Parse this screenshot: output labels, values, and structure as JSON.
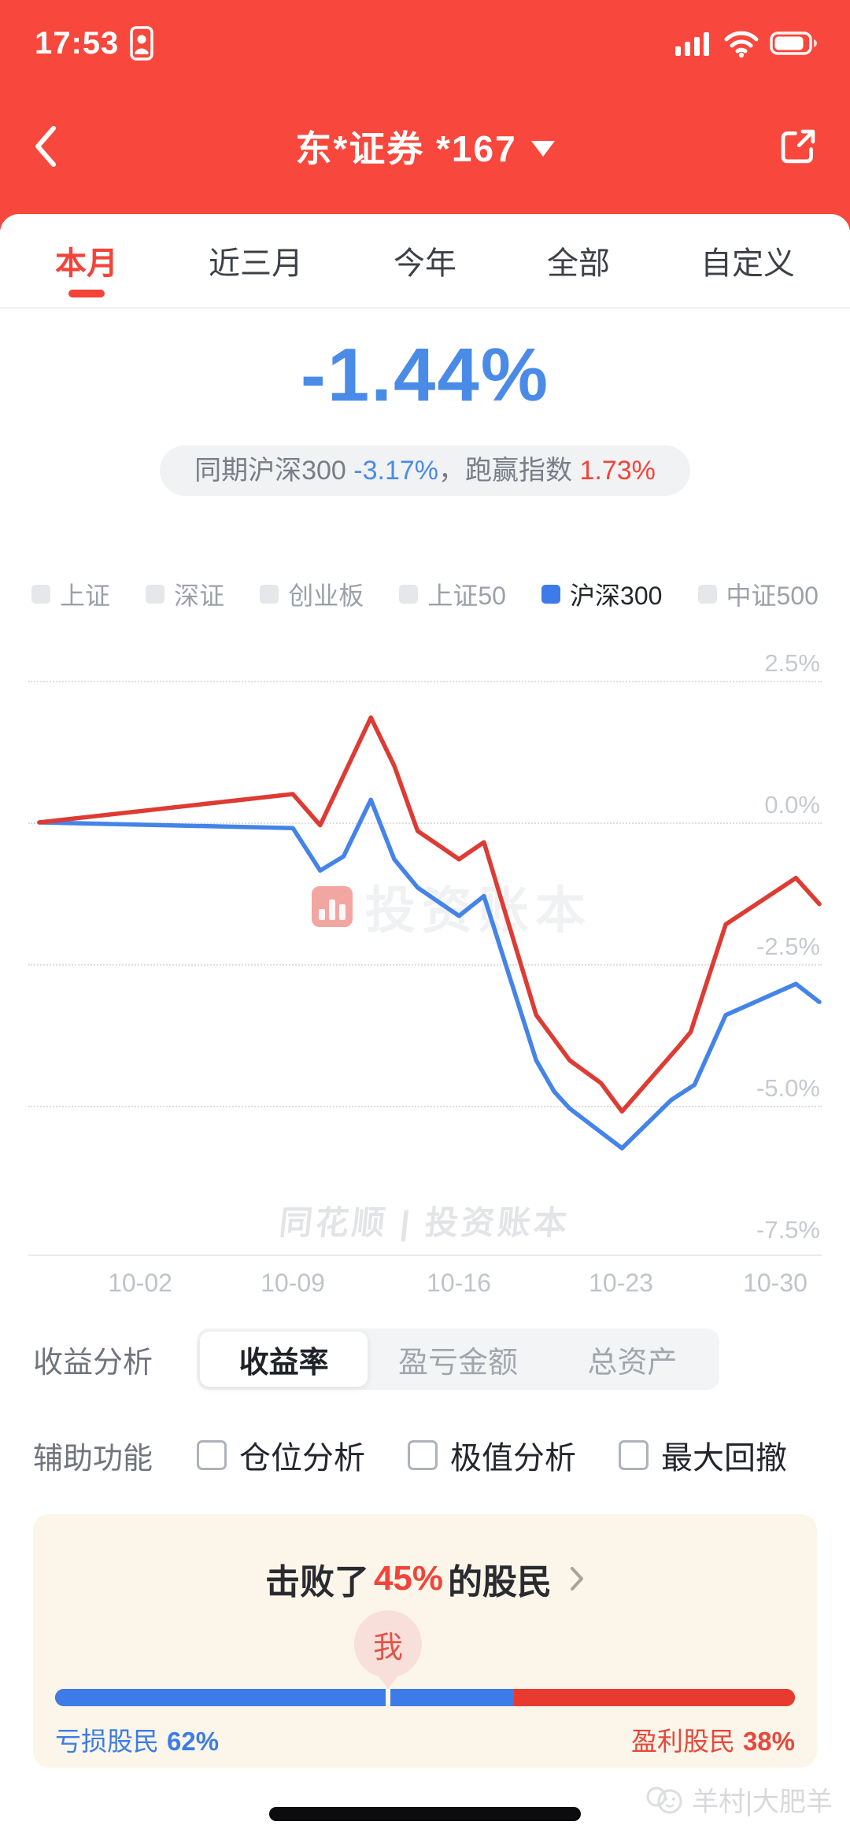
{
  "status_bar": {
    "time": "17:53"
  },
  "header": {
    "title": "东*证券 *167"
  },
  "tabs": [
    {
      "label": "本月",
      "active": true
    },
    {
      "label": "近三月",
      "active": false
    },
    {
      "label": "今年",
      "active": false
    },
    {
      "label": "全部",
      "active": false
    },
    {
      "label": "自定义",
      "active": false
    }
  ],
  "summary": {
    "period_return": "-1.44%",
    "benchmark_prefix": "同期沪深300 ",
    "benchmark_return": "-3.17%",
    "middle_text": "，跑赢指数 ",
    "outperformance": "1.73%"
  },
  "legend": [
    {
      "label": "上证",
      "active": false
    },
    {
      "label": "深证",
      "active": false
    },
    {
      "label": "创业板",
      "active": false
    },
    {
      "label": "上证50",
      "active": false
    },
    {
      "label": "沪深300",
      "active": true
    },
    {
      "label": "中证500",
      "active": false
    }
  ],
  "chart_data": {
    "type": "line",
    "title": "",
    "x_axis_labels": [
      "10-02",
      "10-09",
      "10-16",
      "10-23",
      "10-30"
    ],
    "x_label_positions_pct": [
      12.9,
      32.5,
      53.8,
      74.6,
      94.3
    ],
    "y_tick_labels": [
      "2.5%",
      "0.0%",
      "-2.5%",
      "-5.0%",
      "-7.5%"
    ],
    "y_tick_values": [
      2.5,
      0,
      -2.5,
      -5.0,
      -7.5
    ],
    "ylim": [
      -7.6,
      3.1
    ],
    "grid": "horizontal-dotted",
    "legend_position": "top",
    "x_unit": "percent_of_chart_width",
    "y_unit": "percent_return",
    "series": [
      {
        "name": "收益率",
        "color": "#DD3B33",
        "final_value": "-1.44%",
        "points": [
          [
            0,
            0
          ],
          [
            32.5,
            0.5
          ],
          [
            36,
            -0.05
          ],
          [
            42.5,
            1.85
          ],
          [
            45.5,
            1.0
          ],
          [
            48.5,
            -0.15
          ],
          [
            53.8,
            -0.65
          ],
          [
            57,
            -0.35
          ],
          [
            63.7,
            -3.4
          ],
          [
            68,
            -4.2
          ],
          [
            72,
            -4.6
          ],
          [
            74.7,
            -5.1
          ],
          [
            82,
            -3.95
          ],
          [
            83.5,
            -3.7
          ],
          [
            88,
            -1.8
          ],
          [
            97,
            -0.98
          ],
          [
            100,
            -1.44
          ]
        ]
      },
      {
        "name": "沪深300",
        "color": "#4484E8",
        "final_value": "-3.17%",
        "points": [
          [
            0,
            0
          ],
          [
            32.5,
            -0.1
          ],
          [
            36,
            -0.85
          ],
          [
            39,
            -0.6
          ],
          [
            42.5,
            0.4
          ],
          [
            45.5,
            -0.65
          ],
          [
            48.5,
            -1.15
          ],
          [
            53.8,
            -1.65
          ],
          [
            57,
            -1.3
          ],
          [
            63.7,
            -4.2
          ],
          [
            66,
            -4.75
          ],
          [
            68,
            -5.05
          ],
          [
            74.7,
            -5.75
          ],
          [
            81,
            -4.9
          ],
          [
            84,
            -4.63
          ],
          [
            88,
            -3.4
          ],
          [
            97,
            -2.85
          ],
          [
            100,
            -3.17
          ]
        ]
      }
    ]
  },
  "watermarks": {
    "center_text": "投资账本",
    "bottom_text": "同花顺 | 投资账本",
    "page_text": "羊村|大肥羊"
  },
  "analysis": {
    "label": "收益分析",
    "segments": [
      {
        "label": "收益率",
        "active": true
      },
      {
        "label": "盈亏金额",
        "active": false
      },
      {
        "label": "总资产",
        "active": false
      }
    ]
  },
  "aux": {
    "label": "辅助功能",
    "options": [
      {
        "label": "仓位分析",
        "checked": false
      },
      {
        "label": "极值分析",
        "checked": false
      },
      {
        "label": "最大回撤",
        "checked": false
      }
    ]
  },
  "beat_card": {
    "title_prefix": "击败了 ",
    "beat_percent": "45%",
    "title_suffix": " 的股民",
    "marker_label": "我",
    "marker_pos_pct": 45,
    "bar": {
      "loss_pct": 62,
      "profit_pct": 38,
      "loss_color": "#3D7CE8",
      "profit_color": "#E83B30"
    },
    "loss_label": "亏损股民",
    "loss_value": "62%",
    "profit_label": "盈利股民",
    "profit_value": "38%"
  },
  "colors": {
    "app_red": "#F8473C",
    "headline_blue": "#4A8BE8",
    "outperform_red": "#F2443A"
  }
}
